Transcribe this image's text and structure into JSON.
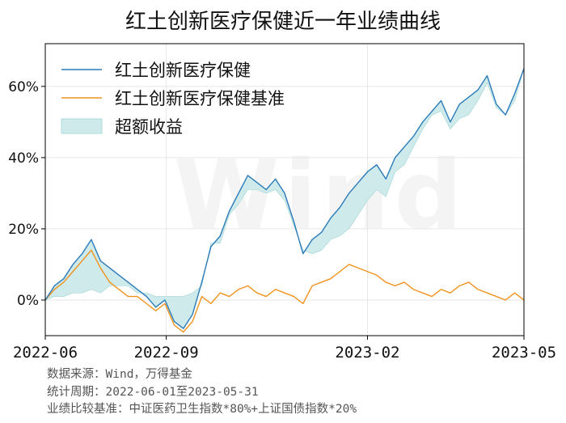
{
  "title": "红土创新医疗保健近一年业绩曲线",
  "watermark": "Wind",
  "footnotes": {
    "source": "数据来源：Wind，万得基金",
    "period": "统计周期：2022-06-01至2023-05-31",
    "benchmark_note": "业绩比较基准：中证医药卫生指数*80%+上证国债指数*20%"
  },
  "colors": {
    "fund": "#2b7bb9",
    "benchmark": "#f0931e",
    "excess_fill": "#cfeaea",
    "excess_edge": "#9fd5d5"
  },
  "chart_data": {
    "type": "line",
    "title": "红土创新医疗保健近一年业绩曲线",
    "xlabel": "",
    "ylabel": "",
    "x_ticks": [
      "2022-06",
      "2022-09",
      "2023-02",
      "2023-05"
    ],
    "y_ticks": [
      "0%",
      "20%",
      "40%",
      "60%"
    ],
    "ylim": [
      -10,
      72
    ],
    "xlim": [
      "2022-06-01",
      "2023-05-31"
    ],
    "grid": true,
    "legend_position": "top-left",
    "dates": [
      "2022-06-01",
      "2022-06-08",
      "2022-06-15",
      "2022-06-22",
      "2022-06-29",
      "2022-07-06",
      "2022-07-13",
      "2022-07-20",
      "2022-07-27",
      "2022-08-03",
      "2022-08-10",
      "2022-08-17",
      "2022-08-24",
      "2022-08-31",
      "2022-09-07",
      "2022-09-14",
      "2022-09-21",
      "2022-09-28",
      "2022-10-05",
      "2022-10-12",
      "2022-10-19",
      "2022-10-26",
      "2022-11-02",
      "2022-11-09",
      "2022-11-16",
      "2022-11-23",
      "2022-11-30",
      "2022-12-07",
      "2022-12-14",
      "2022-12-21",
      "2022-12-28",
      "2023-01-04",
      "2023-01-11",
      "2023-01-18",
      "2023-01-25",
      "2023-02-01",
      "2023-02-08",
      "2023-02-15",
      "2023-02-22",
      "2023-03-01",
      "2023-03-08",
      "2023-03-15",
      "2023-03-22",
      "2023-03-29",
      "2023-04-05",
      "2023-04-12",
      "2023-04-19",
      "2023-04-26",
      "2023-05-03",
      "2023-05-10",
      "2023-05-17",
      "2023-05-24",
      "2023-05-31"
    ],
    "series": [
      {
        "name": "红土创新医疗保健",
        "values": [
          0,
          4,
          6,
          10,
          13,
          17,
          11,
          9,
          7,
          5,
          3,
          1,
          -2,
          0,
          -6,
          -8,
          -4,
          5,
          15,
          18,
          25,
          30,
          35,
          33,
          31,
          34,
          30,
          22,
          13,
          17,
          19,
          23,
          26,
          30,
          33,
          36,
          38,
          34,
          40,
          43,
          46,
          50,
          53,
          56,
          50,
          55,
          57,
          59,
          63,
          55,
          52,
          58,
          65
        ]
      },
      {
        "name": "红土创新医疗保健基准",
        "values": [
          0,
          3,
          5,
          8,
          11,
          14,
          9,
          5,
          3,
          1,
          1,
          -1,
          -3,
          -1,
          -7,
          -9,
          -6,
          1,
          -1,
          2,
          1,
          3,
          4,
          2,
          1,
          3,
          2,
          1,
          -1,
          4,
          5,
          6,
          8,
          10,
          9,
          8,
          7,
          5,
          4,
          5,
          3,
          2,
          1,
          3,
          2,
          4,
          5,
          3,
          2,
          1,
          0,
          2,
          0
        ]
      }
    ],
    "excess_series_name": "超额收益"
  }
}
